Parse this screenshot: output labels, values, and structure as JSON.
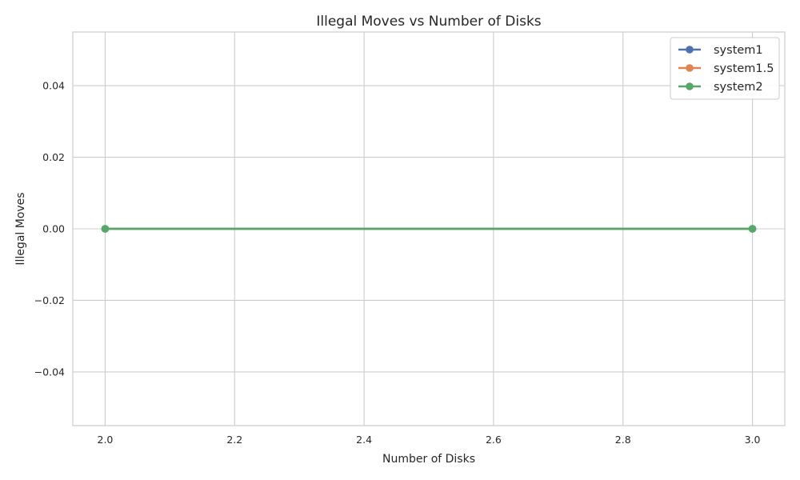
{
  "chart_data": {
    "type": "line",
    "title": "Illegal Moves vs Number of Disks",
    "xlabel": "Number of Disks",
    "ylabel": "Illegal Moves",
    "xlim": [
      1.95,
      3.05
    ],
    "ylim": [
      -0.055,
      0.055
    ],
    "x_ticks": [
      2.0,
      2.2,
      2.4,
      2.6,
      2.8,
      3.0
    ],
    "x_tick_labels": [
      "2.0",
      "2.2",
      "2.4",
      "2.6",
      "2.8",
      "3.0"
    ],
    "y_ticks": [
      -0.04,
      -0.02,
      0.0,
      0.02,
      0.04
    ],
    "y_tick_labels": [
      "−0.04",
      "−0.02",
      "0.00",
      "0.02",
      "0.04"
    ],
    "grid": true,
    "legend_position": "top-right",
    "x": [
      2,
      3
    ],
    "series": [
      {
        "name": "system1",
        "values": [
          0,
          0
        ],
        "color": "#4c72b0"
      },
      {
        "name": "system1.5",
        "values": [
          0,
          0
        ],
        "color": "#dd8452"
      },
      {
        "name": "system2",
        "values": [
          0,
          0
        ],
        "color": "#55a868"
      }
    ]
  }
}
